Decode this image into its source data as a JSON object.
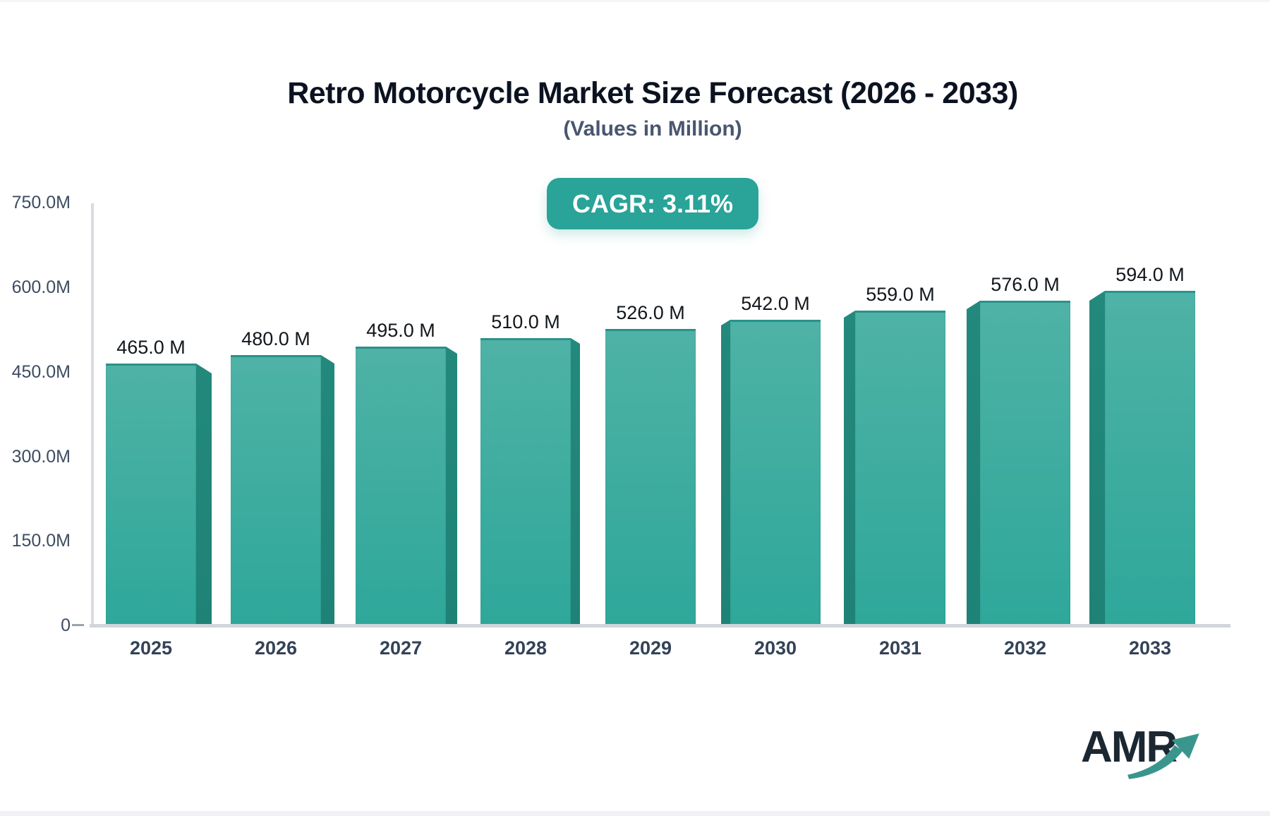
{
  "header": {
    "title": "Retro Motorcycle Market Size Forecast (2026 - 2033)",
    "subtitle": "(Values in Million)"
  },
  "badge": {
    "label": "CAGR: 3.11%",
    "bg": "#2aa398",
    "text_color": "#ffffff"
  },
  "chart_data": {
    "type": "bar",
    "title": "Retro Motorcycle Market Size Forecast (2026 - 2033)",
    "subtitle": "(Values in Million)",
    "cagr": "3.11%",
    "categories": [
      "2025",
      "2026",
      "2027",
      "2028",
      "2029",
      "2030",
      "2031",
      "2032",
      "2033"
    ],
    "values": [
      465.0,
      480.0,
      495.0,
      510.0,
      526.0,
      542.0,
      559.0,
      576.0,
      594.0
    ],
    "bar_labels": [
      "465.0 M",
      "480.0 M",
      "495.0 M",
      "510.0 M",
      "526.0 M",
      "542.0 M",
      "559.0 M",
      "576.0 M",
      "594.0 M"
    ],
    "y_ticks": {
      "labels": [
        "750.0M",
        "600.0M",
        "450.0M",
        "300.0M",
        "150.0M",
        "0"
      ],
      "values": [
        750,
        600,
        450,
        300,
        150,
        0
      ]
    },
    "ylim": [
      0,
      750
    ],
    "grid": false,
    "legend": false,
    "colors": {
      "bar_front_top": "#4fb2a6",
      "bar_front_mid": "#3cac9f",
      "bar_front_bottom": "#2ea79a",
      "bar_side": "#1f8276",
      "bar_top_edge": "#2a9289",
      "axis_line": "#d9dbe1",
      "baseline": "#d2d5da",
      "badge_bg": "#2aa398"
    }
  },
  "logo": {
    "text": "AMR",
    "text_color": "#1b2731",
    "arrow_color": "#3a968c"
  }
}
